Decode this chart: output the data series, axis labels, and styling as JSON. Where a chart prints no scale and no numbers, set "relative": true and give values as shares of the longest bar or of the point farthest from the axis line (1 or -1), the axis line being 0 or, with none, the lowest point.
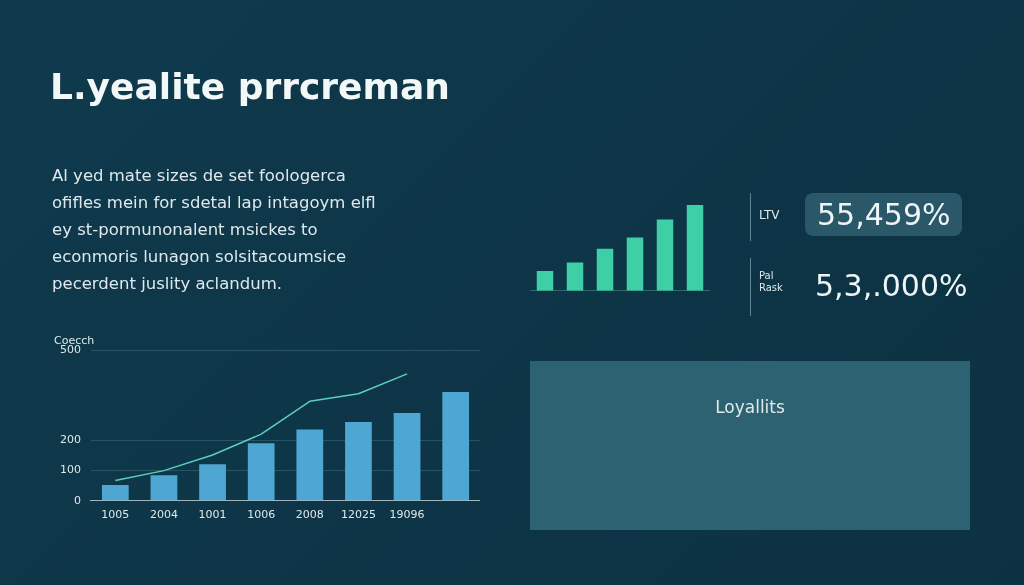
{
  "chart_data": [
    {
      "type": "bar",
      "title": "L.yealite prrcreman",
      "subtitle": "Al yed mate sizes de set foologerca ofifles mein for sdetal lap intagoym elfl ey st-pormunonalent msickes to econmoris lunagon solsitacoumsice pecerdent juslity aclandum.",
      "ylabel": "Coecch",
      "categories": [
        "1005",
        "2004",
        "1001",
        "1006",
        "2008",
        "12025",
        "19096",
        null
      ],
      "series": [
        {
          "type": "bar",
          "color": "#4ea6d2",
          "values": [
            52,
            85,
            121,
            191,
            236,
            261,
            291,
            361
          ]
        },
        {
          "type": "line",
          "color": "#5ccfbd",
          "values": [
            67,
            100,
            152,
            221,
            330,
            355,
            421,
            null
          ]
        }
      ],
      "ylim": [
        0,
        500
      ],
      "yticks": [
        0,
        100,
        200,
        500
      ],
      "grid": "y",
      "marker": "none"
    },
    {
      "type": "bar",
      "relative": true,
      "categories": [
        null,
        null,
        null,
        null,
        null,
        null
      ],
      "values": [
        0.23,
        0.33,
        0.49,
        0.62,
        0.83,
        1
      ],
      "color": "#3ecfa6"
    },
    {
      "type": "other",
      "annotations": [
        "LTV",
        "55,459%",
        "Pal Rask",
        "5,3,.000%"
      ]
    },
    {
      "type": "other",
      "title": "Loyallits"
    }
  ]
}
